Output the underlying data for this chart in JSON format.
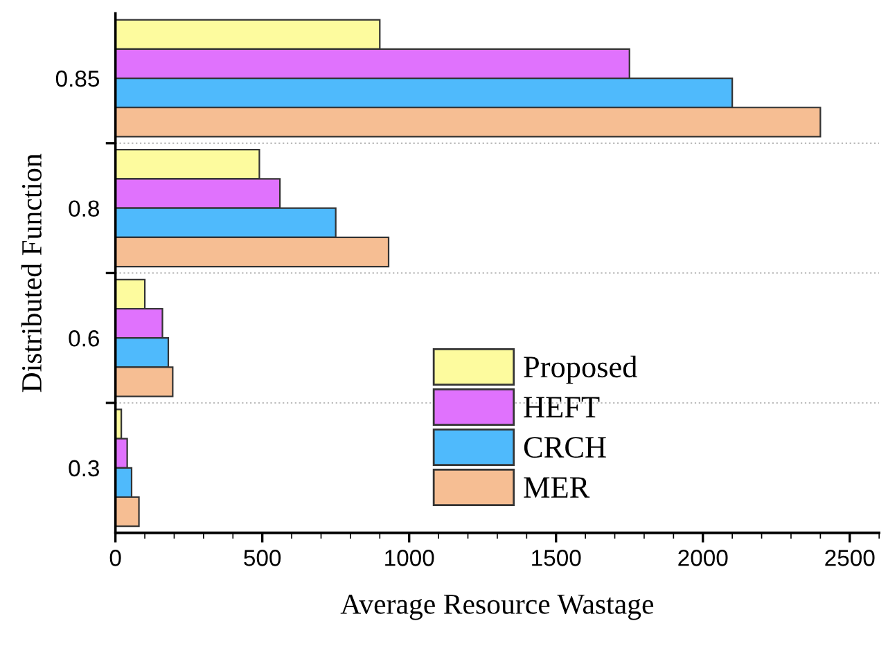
{
  "chart_data": {
    "type": "bar",
    "orientation": "horizontal",
    "xlabel": "Average Resource Wastage",
    "ylabel": "Distributed Function",
    "categories": [
      "0.85",
      "0.8",
      "0.6",
      "0.3"
    ],
    "series": [
      {
        "name": "Proposed",
        "color": "#fdfb9e",
        "values": [
          900,
          490,
          100,
          20
        ]
      },
      {
        "name": "HEFT",
        "color": "#e072fd",
        "values": [
          1750,
          560,
          160,
          40
        ]
      },
      {
        "name": "CRCH",
        "color": "#4fbafc",
        "values": [
          2100,
          750,
          180,
          55
        ]
      },
      {
        "name": "MER",
        "color": "#f6be93",
        "values": [
          2400,
          930,
          195,
          80
        ]
      }
    ],
    "xlim": [
      0,
      2600
    ],
    "xticks": [
      0,
      500,
      1000,
      1500,
      2000,
      2500
    ],
    "grid": "y",
    "legend": "bottom right"
  }
}
